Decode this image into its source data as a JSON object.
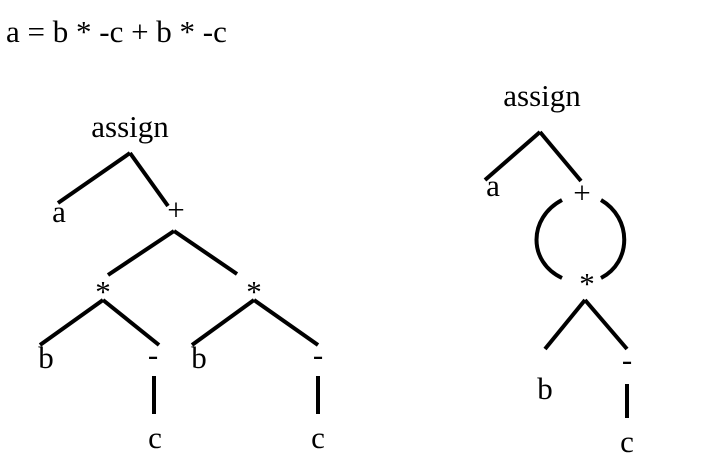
{
  "expression": "a = b * -c + b * -c",
  "tree": {
    "root": "assign",
    "lhs": "a",
    "plus": "+",
    "mul_left": "*",
    "mul_right": "*",
    "b_left": "b",
    "neg_left": "-",
    "c_left": "c",
    "b_right": "b",
    "neg_right": "-",
    "c_right": "c"
  },
  "dag": {
    "root": "assign",
    "lhs": "a",
    "plus": "+",
    "mul": "*",
    "b": "b",
    "neg": "-",
    "c": "c"
  },
  "colors": {
    "ink": "#000000",
    "background": "#ffffff"
  }
}
